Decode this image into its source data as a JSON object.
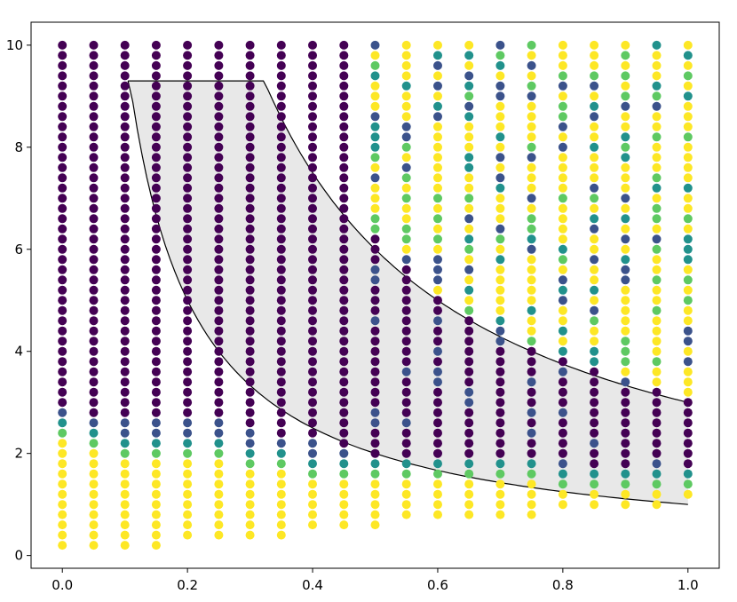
{
  "chart_data": {
    "type": "scatter",
    "title": "",
    "xlabel": "",
    "ylabel": "",
    "xlim": [
      -0.05,
      1.05
    ],
    "ylim": [
      -0.25,
      10.45
    ],
    "grid": false,
    "x_ticks": [
      {
        "value": 0.0,
        "label": "0.0"
      },
      {
        "value": 0.2,
        "label": "0.2"
      },
      {
        "value": 0.4,
        "label": "0.4"
      },
      {
        "value": 0.6,
        "label": "0.6"
      },
      {
        "value": 0.8,
        "label": "0.8"
      },
      {
        "value": 1.0,
        "label": "1.0"
      }
    ],
    "y_ticks": [
      {
        "value": 0,
        "label": "0"
      },
      {
        "value": 2,
        "label": "2"
      },
      {
        "value": 4,
        "label": "4"
      },
      {
        "value": 6,
        "label": "6"
      },
      {
        "value": 8,
        "label": "8"
      },
      {
        "value": 10,
        "label": "10"
      }
    ],
    "grid_points": {
      "x": [
        0.0,
        0.05,
        0.1,
        0.15,
        0.2,
        0.25,
        0.3,
        0.35,
        0.4,
        0.45,
        0.5,
        0.55,
        0.6,
        0.65,
        0.7,
        0.75,
        0.8,
        0.85,
        0.9,
        0.95,
        1.0
      ],
      "y_start": [
        0.2,
        0.2,
        0.2,
        0.2,
        0.4,
        0.4,
        0.4,
        0.4,
        0.6,
        0.6,
        0.6,
        0.8,
        0.8,
        0.8,
        0.8,
        0.8,
        1.0,
        1.0,
        1.0,
        1.0,
        1.2
      ],
      "y_end": 10.0,
      "y_step": 0.2
    },
    "color_values": {
      "yellow_below": [
        2.2,
        2.0,
        1.9,
        1.9,
        1.9,
        1.9,
        1.7,
        1.6,
        1.5,
        1.4,
        1.4,
        1.4,
        1.4,
        1.4,
        1.4,
        1.4,
        1.3,
        1.3,
        1.3,
        1.2,
        1.2
      ],
      "top_yellow_from_x": 0.5
    },
    "colormap": [
      "#440154",
      "#3b528b",
      "#21918c",
      "#5ec962",
      "#fde725"
    ],
    "shaded_region": {
      "x_range": [
        0.105,
        1.0
      ],
      "upper_curve": "y = 3/x",
      "lower_curve": "y = 1/x",
      "fill": "#e8e8e8",
      "stroke": "#000000"
    }
  }
}
